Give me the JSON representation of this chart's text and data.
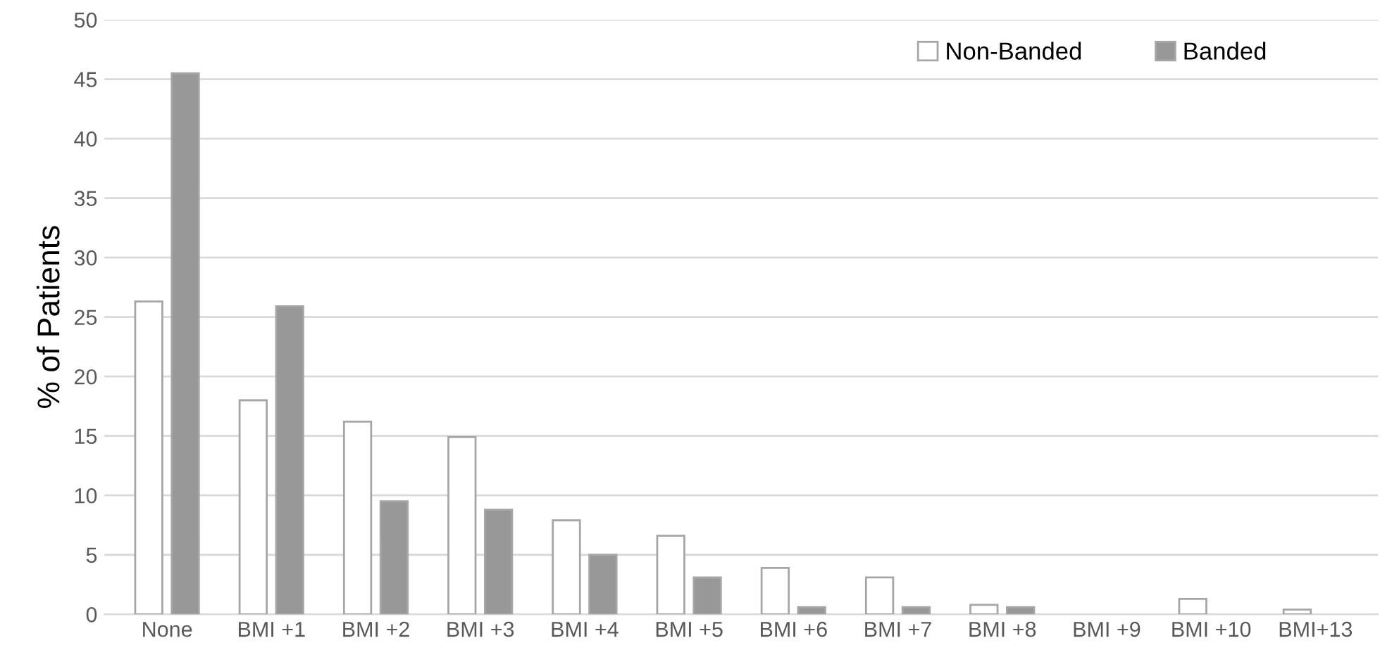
{
  "chart_data": {
    "type": "bar",
    "ylabel": "% of Patients",
    "categories": [
      "None",
      "BMI +1",
      "BMI +2",
      "BMI +3",
      "BMI +4",
      "BMI +5",
      "BMI +6",
      "BMI +7",
      "BMI +8",
      "BMI +9",
      "BMI +10",
      "BMI+13"
    ],
    "series": [
      {
        "name": "Non-Banded",
        "color": "#ffffff",
        "values": [
          26.3,
          18.0,
          16.2,
          14.9,
          7.9,
          6.6,
          3.9,
          3.1,
          0.8,
          0,
          1.3,
          0.4
        ]
      },
      {
        "name": "Banded",
        "color": "#989898",
        "values": [
          45.5,
          25.9,
          9.5,
          8.8,
          5.0,
          3.1,
          0.6,
          0.6,
          0.6,
          0,
          0,
          0
        ]
      }
    ],
    "ylim": [
      0,
      50
    ],
    "yticks": [
      0,
      5,
      10,
      15,
      20,
      25,
      30,
      35,
      40,
      45,
      50
    ],
    "grid": "y",
    "legend": "top right"
  }
}
